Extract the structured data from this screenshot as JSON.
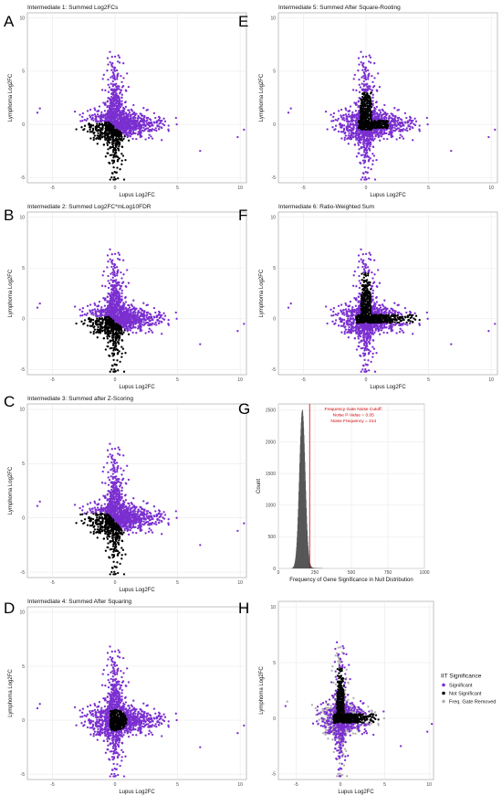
{
  "figure": {
    "panel_letters": [
      "A",
      "B",
      "C",
      "D",
      "E",
      "F",
      "G",
      "H"
    ]
  },
  "chart_data": [
    {
      "id": "A",
      "type": "scatter",
      "title": "Intermediate 1: Summed Log2FCs",
      "xlabel": "Lupus Log2FC",
      "ylabel": "Lymphoma Log2FC",
      "xlim": [
        -7,
        10.5
      ],
      "ylim": [
        -5.5,
        10.5
      ],
      "xticks": [
        -5,
        0,
        5,
        10
      ],
      "yticks": [
        -5,
        0,
        5,
        10
      ],
      "colors": {
        "significant": "#7b2fd0",
        "not_significant": "#000000"
      },
      "black_rule": "negative-sum",
      "outliers": [
        [
          -6.2,
          1.1
        ],
        [
          -6.0,
          1.5
        ],
        [
          9.8,
          -1.2
        ],
        [
          10.3,
          -0.5
        ],
        [
          6.8,
          -2.5
        ],
        [
          -3.2,
          1.2
        ],
        [
          -2.8,
          0.9
        ],
        [
          -2.0,
          -0.5
        ]
      ]
    },
    {
      "id": "B",
      "type": "scatter",
      "title": "Intermediate 2: Summed Log2FC*mLog10FDR",
      "xlabel": "Lupus Log2FC",
      "ylabel": "Lymphoma Log2FC",
      "xlim": [
        -7,
        10.5
      ],
      "ylim": [
        -5.5,
        10.5
      ],
      "xticks": [
        -5,
        0,
        5,
        10
      ],
      "yticks": [
        -5,
        0,
        5,
        10
      ],
      "colors": {
        "significant": "#7b2fd0",
        "not_significant": "#000000"
      },
      "black_rule": "negative-sum",
      "outliers": [
        [
          -6.2,
          1.1
        ],
        [
          -6.0,
          1.5
        ],
        [
          9.8,
          -1.2
        ],
        [
          10.3,
          -0.5
        ],
        [
          6.8,
          -2.5
        ],
        [
          -3.2,
          1.2
        ],
        [
          -2.8,
          0.9
        ]
      ]
    },
    {
      "id": "C",
      "type": "scatter",
      "title": "Intermediate 3: Summed after Z-Scoring",
      "xlabel": "Lupus Log2FC",
      "ylabel": "Lymphoma Log2FC",
      "xlim": [
        -7,
        10.5
      ],
      "ylim": [
        -5.5,
        10.5
      ],
      "xticks": [
        -5,
        0,
        5,
        10
      ],
      "yticks": [
        -5,
        0,
        5,
        10
      ],
      "colors": {
        "significant": "#7b2fd0",
        "not_significant": "#000000"
      },
      "black_rule": "low-zsum",
      "outliers": [
        [
          -6.2,
          1.1
        ],
        [
          -6.0,
          1.5
        ],
        [
          9.8,
          -1.2
        ],
        [
          10.3,
          -0.5
        ],
        [
          6.8,
          -2.5
        ],
        [
          -3.2,
          1.2
        ],
        [
          -2.8,
          0.9
        ]
      ]
    },
    {
      "id": "D",
      "type": "scatter",
      "title": "Intermediate 4: Summed After Squaring",
      "xlabel": "Lupus Log2FC",
      "ylabel": "Lymphoma Log2FC",
      "xlim": [
        -7,
        10.5
      ],
      "ylim": [
        -5.5,
        10.5
      ],
      "xticks": [
        -5,
        0,
        5,
        10
      ],
      "yticks": [
        -5,
        0,
        5,
        10
      ],
      "colors": {
        "significant": "#7b2fd0",
        "not_significant": "#000000"
      },
      "black_rule": "small-squares",
      "outliers": [
        [
          -6.2,
          1.1
        ],
        [
          -6.0,
          1.5
        ],
        [
          9.8,
          -1.2
        ],
        [
          10.3,
          -0.5
        ],
        [
          6.8,
          -2.5
        ],
        [
          -3.2,
          1.2
        ],
        [
          -2.8,
          0.9
        ]
      ]
    },
    {
      "id": "E",
      "type": "scatter",
      "title": "Intermediate 5: Summed After Square-Rooting",
      "xlabel": "Lupus Log2FC",
      "ylabel": "Lymphoma Log2FC",
      "xlim": [
        -7,
        10.5
      ],
      "ylim": [
        -5.5,
        10.5
      ],
      "xticks": [
        -5,
        0,
        5,
        10
      ],
      "yticks": [
        -5,
        0,
        5,
        10
      ],
      "colors": {
        "significant": "#7b2fd0",
        "not_significant": "#000000"
      },
      "black_rule": "central-cross",
      "outliers": [
        [
          -6.2,
          1.1
        ],
        [
          -6.0,
          1.5
        ],
        [
          9.8,
          -1.2
        ],
        [
          10.3,
          -0.5
        ],
        [
          6.8,
          -2.5
        ],
        [
          -3.2,
          1.2
        ],
        [
          -2.8,
          0.9
        ]
      ]
    },
    {
      "id": "F",
      "type": "scatter",
      "title": "Intermediate 6: Ratio-Weighted Sum",
      "xlabel": "Lupus Log2FC",
      "ylabel": "Lymphoma Log2FC",
      "xlim": [
        -7,
        10.5
      ],
      "ylim": [
        -5.5,
        10.5
      ],
      "xticks": [
        -5,
        0,
        5,
        10
      ],
      "yticks": [
        -5,
        0,
        5,
        10
      ],
      "colors": {
        "significant": "#7b2fd0",
        "not_significant": "#000000"
      },
      "black_rule": "ratio-cross",
      "outliers": [
        [
          -6.2,
          1.1
        ],
        [
          -6.0,
          1.5
        ],
        [
          9.8,
          -1.2
        ],
        [
          10.3,
          -0.5
        ],
        [
          6.8,
          -2.5
        ],
        [
          -3.2,
          1.2
        ],
        [
          -2.8,
          0.9
        ]
      ]
    },
    {
      "id": "G",
      "type": "bar",
      "xlabel": "Frequency of Gene Significance in Null Distribution",
      "ylabel": "Count",
      "xlim": [
        0,
        1000
      ],
      "ylim": [
        0,
        2600
      ],
      "xticks": [
        0,
        250,
        500,
        750,
        1000
      ],
      "yticks": [
        0,
        500,
        1000,
        1500,
        2000,
        2500
      ],
      "histogram_center": 162,
      "histogram_sd": 20,
      "histogram_peak": 2500,
      "cutoff": 214,
      "annotation": [
        "Frequency Gate Noise Cutoff:",
        "Noise P-Value = 0.05",
        "Noise Frequency = 214"
      ],
      "colors": {
        "bars": "#555555",
        "cutoff": "#d00000"
      }
    },
    {
      "id": "H",
      "type": "scatter",
      "xlabel": "Lupus Log2FC",
      "ylabel": "Lymphoma Log2FC",
      "xlim": [
        -7,
        10.5
      ],
      "ylim": [
        -5.5,
        10.5
      ],
      "xticks": [
        -5,
        0,
        5,
        10
      ],
      "yticks": [
        -5,
        0,
        5,
        10
      ],
      "black_rule": "ratio-cross-gated",
      "outliers": [
        [
          -6.2,
          1.1
        ],
        [
          -6.0,
          1.5
        ],
        [
          9.8,
          -1.2
        ],
        [
          10.3,
          -0.5
        ],
        [
          6.8,
          -2.5
        ],
        [
          -3.2,
          1.2
        ],
        [
          -2.8,
          0.9
        ]
      ],
      "legend": {
        "title": "IIT Significance",
        "entries": [
          {
            "label": "Significant",
            "color": "#7b2fd0"
          },
          {
            "label": "Not Significant",
            "color": "#000000"
          },
          {
            "label": "Freq. Gate Removed",
            "color": "#b0b0b0"
          }
        ]
      }
    }
  ]
}
